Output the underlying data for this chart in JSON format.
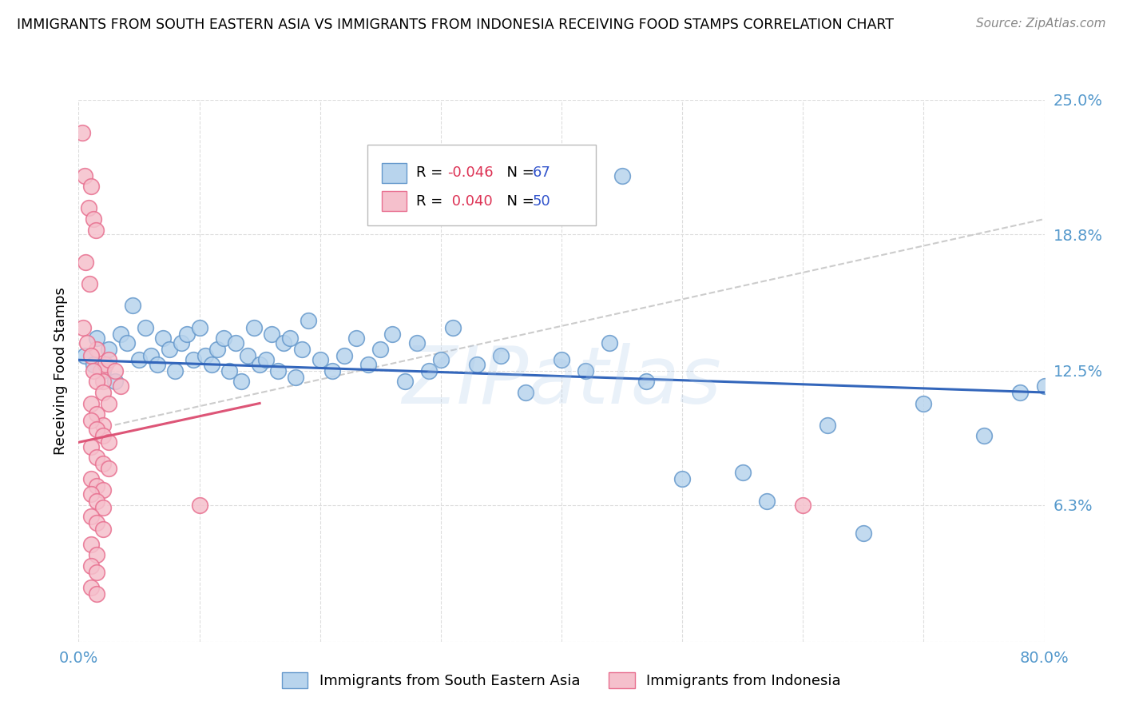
{
  "title": "IMMIGRANTS FROM SOUTH EASTERN ASIA VS IMMIGRANTS FROM INDONESIA RECEIVING FOOD STAMPS CORRELATION CHART",
  "source": "Source: ZipAtlas.com",
  "xlim": [
    0.0,
    80.0
  ],
  "ylim": [
    0.0,
    25.0
  ],
  "watermark": "ZIPatlas",
  "legend": {
    "series1": {
      "label": "Immigrants from South Eastern Asia",
      "R": "-0.046",
      "N": "67"
    },
    "series2": {
      "label": "Immigrants from Indonesia",
      "R": "0.040",
      "N": "50"
    }
  },
  "series1_color": "#b8d4ed",
  "series1_edge": "#6699cc",
  "series2_color": "#f5c0cc",
  "series2_edge": "#e87090",
  "trend1_color": "#3366bb",
  "trend2_color": "#dd5577",
  "trend_gray_color": "#cccccc",
  "legend_R_color": "#dd3355",
  "legend_N_color": "#3355cc",
  "tick_label_color": "#5599cc",
  "ylabel_ticks": [
    0.0,
    6.3,
    12.5,
    18.8,
    25.0
  ],
  "ylabel_tick_labels": [
    "",
    "6.3%",
    "12.5%",
    "18.8%",
    "25.0%"
  ],
  "blue_scatter": [
    [
      0.5,
      13.2
    ],
    [
      1.2,
      12.8
    ],
    [
      1.5,
      14.0
    ],
    [
      2.0,
      12.5
    ],
    [
      2.5,
      13.5
    ],
    [
      3.0,
      12.0
    ],
    [
      3.5,
      14.2
    ],
    [
      4.0,
      13.8
    ],
    [
      4.5,
      15.5
    ],
    [
      5.0,
      13.0
    ],
    [
      5.5,
      14.5
    ],
    [
      6.0,
      13.2
    ],
    [
      6.5,
      12.8
    ],
    [
      7.0,
      14.0
    ],
    [
      7.5,
      13.5
    ],
    [
      8.0,
      12.5
    ],
    [
      8.5,
      13.8
    ],
    [
      9.0,
      14.2
    ],
    [
      9.5,
      13.0
    ],
    [
      10.0,
      14.5
    ],
    [
      10.5,
      13.2
    ],
    [
      11.0,
      12.8
    ],
    [
      11.5,
      13.5
    ],
    [
      12.0,
      14.0
    ],
    [
      12.5,
      12.5
    ],
    [
      13.0,
      13.8
    ],
    [
      13.5,
      12.0
    ],
    [
      14.0,
      13.2
    ],
    [
      14.5,
      14.5
    ],
    [
      15.0,
      12.8
    ],
    [
      15.5,
      13.0
    ],
    [
      16.0,
      14.2
    ],
    [
      16.5,
      12.5
    ],
    [
      17.0,
      13.8
    ],
    [
      17.5,
      14.0
    ],
    [
      18.0,
      12.2
    ],
    [
      18.5,
      13.5
    ],
    [
      19.0,
      14.8
    ],
    [
      20.0,
      13.0
    ],
    [
      21.0,
      12.5
    ],
    [
      22.0,
      13.2
    ],
    [
      23.0,
      14.0
    ],
    [
      24.0,
      12.8
    ],
    [
      25.0,
      13.5
    ],
    [
      26.0,
      14.2
    ],
    [
      27.0,
      12.0
    ],
    [
      28.0,
      13.8
    ],
    [
      29.0,
      12.5
    ],
    [
      30.0,
      13.0
    ],
    [
      31.0,
      14.5
    ],
    [
      33.0,
      12.8
    ],
    [
      35.0,
      13.2
    ],
    [
      37.0,
      11.5
    ],
    [
      40.0,
      13.0
    ],
    [
      42.0,
      12.5
    ],
    [
      44.0,
      13.8
    ],
    [
      45.0,
      21.5
    ],
    [
      47.0,
      12.0
    ],
    [
      50.0,
      7.5
    ],
    [
      55.0,
      7.8
    ],
    [
      57.0,
      6.5
    ],
    [
      62.0,
      10.0
    ],
    [
      65.0,
      5.0
    ],
    [
      70.0,
      11.0
    ],
    [
      75.0,
      9.5
    ],
    [
      78.0,
      11.5
    ],
    [
      80.0,
      11.8
    ]
  ],
  "pink_scatter": [
    [
      0.3,
      23.5
    ],
    [
      0.5,
      21.5
    ],
    [
      0.8,
      20.0
    ],
    [
      1.0,
      21.0
    ],
    [
      1.2,
      19.5
    ],
    [
      1.4,
      19.0
    ],
    [
      0.6,
      17.5
    ],
    [
      0.9,
      16.5
    ],
    [
      1.5,
      13.5
    ],
    [
      1.8,
      12.5
    ],
    [
      2.0,
      12.0
    ],
    [
      2.2,
      12.8
    ],
    [
      2.5,
      13.0
    ],
    [
      0.4,
      14.5
    ],
    [
      0.7,
      13.8
    ],
    [
      1.0,
      13.2
    ],
    [
      1.2,
      12.5
    ],
    [
      1.5,
      12.0
    ],
    [
      2.0,
      11.5
    ],
    [
      2.5,
      11.0
    ],
    [
      3.0,
      12.5
    ],
    [
      3.5,
      11.8
    ],
    [
      1.0,
      11.0
    ],
    [
      1.5,
      10.5
    ],
    [
      2.0,
      10.0
    ],
    [
      1.0,
      10.2
    ],
    [
      1.5,
      9.8
    ],
    [
      2.0,
      9.5
    ],
    [
      2.5,
      9.2
    ],
    [
      1.0,
      9.0
    ],
    [
      1.5,
      8.5
    ],
    [
      2.0,
      8.2
    ],
    [
      2.5,
      8.0
    ],
    [
      1.0,
      7.5
    ],
    [
      1.5,
      7.2
    ],
    [
      2.0,
      7.0
    ],
    [
      1.0,
      6.8
    ],
    [
      1.5,
      6.5
    ],
    [
      2.0,
      6.2
    ],
    [
      1.0,
      5.8
    ],
    [
      1.5,
      5.5
    ],
    [
      2.0,
      5.2
    ],
    [
      1.0,
      4.5
    ],
    [
      1.5,
      4.0
    ],
    [
      1.0,
      3.5
    ],
    [
      1.5,
      3.2
    ],
    [
      1.0,
      2.5
    ],
    [
      1.5,
      2.2
    ],
    [
      10.0,
      6.3
    ],
    [
      60.0,
      6.3
    ]
  ],
  "blue_trend": {
    "x_start": 0.0,
    "y_start": 13.0,
    "x_end": 80.0,
    "y_end": 11.5
  },
  "pink_trend": {
    "x_start": 0.0,
    "y_start": 9.2,
    "x_end": 15.0,
    "y_end": 11.0
  },
  "gray_trend": {
    "x_start": 3.0,
    "y_start": 10.0,
    "x_end": 80.0,
    "y_end": 19.5
  },
  "background_color": "#ffffff",
  "grid_color": "#dddddd"
}
